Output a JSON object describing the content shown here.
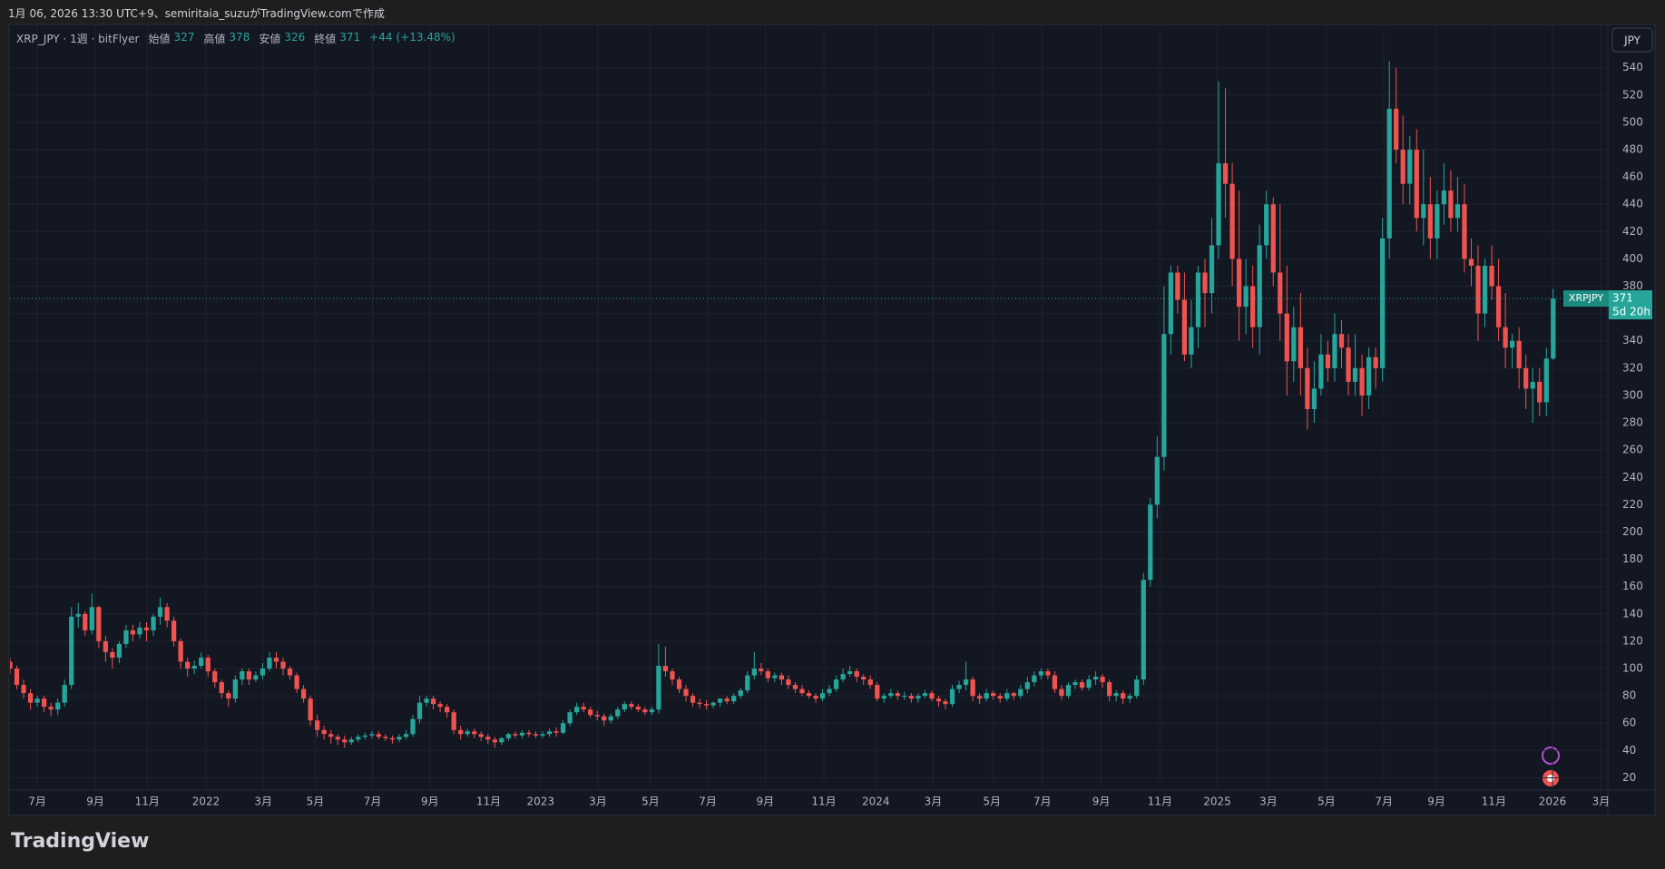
{
  "header": {
    "attribution": "1月 06, 2026 13:30 UTC+9、semiritaia_suzuがTradingView.comで作成",
    "currency": "JPY",
    "logo": "TradingView"
  },
  "chart_data": {
    "type": "candlestick",
    "legend": {
      "symbol": "XRP_JPY · 1週 · bitFlyer",
      "labels": [
        "始値",
        "高値",
        "安値",
        "終値"
      ],
      "values": [
        327,
        378,
        326,
        371
      ],
      "change": {
        "value": 44,
        "label": "+44"
      },
      "change_pct": {
        "value": 13.48,
        "label": "(+13.48%)"
      }
    },
    "last_price_label": {
      "symbol": "XRPJPY",
      "price": 371,
      "countdown": "5d 20h"
    },
    "up_color": "#26a69a",
    "down_color": "#ef5350",
    "grid": true,
    "xlim": [
      0,
      234
    ],
    "ylim": [
      11,
      571
    ],
    "yticks": [
      20,
      40,
      60,
      80,
      100,
      120,
      140,
      160,
      180,
      200,
      220,
      240,
      260,
      280,
      300,
      320,
      340,
      360,
      380,
      400,
      420,
      440,
      460,
      480,
      500,
      520,
      540
    ],
    "xticks": [
      {
        "value": 4,
        "label": "7月"
      },
      {
        "value": 12.5,
        "label": "9月"
      },
      {
        "value": 20.1,
        "label": "11月"
      },
      {
        "value": 28.7,
        "label": "2022"
      },
      {
        "value": 37.1,
        "label": "3月"
      },
      {
        "value": 44.7,
        "label": "5月"
      },
      {
        "value": 53.1,
        "label": "7月"
      },
      {
        "value": 61.5,
        "label": "9月"
      },
      {
        "value": 70.1,
        "label": "11月"
      },
      {
        "value": 77.7,
        "label": "2023"
      },
      {
        "value": 86.1,
        "label": "3月"
      },
      {
        "value": 93.8,
        "label": "5月"
      },
      {
        "value": 102.2,
        "label": "7月"
      },
      {
        "value": 110.6,
        "label": "9月"
      },
      {
        "value": 119.2,
        "label": "11月"
      },
      {
        "value": 126.8,
        "label": "2024"
      },
      {
        "value": 135.2,
        "label": "3月"
      },
      {
        "value": 143.8,
        "label": "5月"
      },
      {
        "value": 151.2,
        "label": "7月"
      },
      {
        "value": 159.8,
        "label": "9月"
      },
      {
        "value": 168.4,
        "label": "11月"
      },
      {
        "value": 176.8,
        "label": "2025"
      },
      {
        "value": 184.3,
        "label": "3月"
      },
      {
        "value": 192.8,
        "label": "5月"
      },
      {
        "value": 201.2,
        "label": "7月"
      },
      {
        "value": 208.9,
        "label": "9月"
      },
      {
        "value": 217.3,
        "label": "11月"
      },
      {
        "value": 225.9,
        "label": "2026"
      },
      {
        "value": 233,
        "label": "3月"
      }
    ],
    "open": [
      105,
      100,
      88,
      82,
      75,
      78,
      72,
      70,
      75,
      88,
      138,
      140,
      128,
      145,
      120,
      112,
      108,
      118,
      128,
      125,
      130,
      128,
      138,
      145,
      135,
      120,
      105,
      100,
      102,
      108,
      98,
      90,
      82,
      78,
      92,
      98,
      92,
      95,
      100,
      108,
      105,
      100,
      95,
      85,
      78,
      62,
      55,
      52,
      50,
      48,
      46,
      48,
      50,
      51,
      52,
      50,
      49,
      48,
      50,
      52,
      63,
      75,
      78,
      74,
      72,
      68,
      55,
      52,
      54,
      52,
      50,
      48,
      46,
      49,
      52,
      51,
      53,
      52,
      51,
      52,
      54,
      53,
      60,
      68,
      72,
      70,
      66,
      65,
      62,
      65,
      70,
      74,
      72,
      70,
      68,
      70,
      102,
      98,
      92,
      85,
      80,
      75,
      74,
      73,
      75,
      78,
      76,
      80,
      84,
      95,
      100,
      98,
      93,
      95,
      92,
      88,
      85,
      82,
      80,
      78,
      82,
      85,
      92,
      96,
      98,
      94,
      92,
      88,
      78,
      80,
      82,
      80,
      80,
      78,
      80,
      82,
      78,
      76,
      74,
      85,
      88,
      92,
      80,
      78,
      82,
      80,
      78,
      82,
      80,
      85,
      90,
      95,
      98,
      95,
      85,
      80,
      88,
      90,
      86,
      92,
      94,
      90,
      80,
      82,
      78,
      80,
      92,
      165,
      220,
      255,
      345,
      390,
      370,
      330,
      350,
      390,
      375,
      410,
      470,
      455,
      400,
      365,
      380,
      350,
      410,
      440,
      390,
      360,
      325,
      350,
      320,
      290,
      305,
      330,
      320,
      345,
      335,
      310,
      320,
      300,
      328,
      320,
      415,
      510,
      480,
      455,
      480,
      430,
      440,
      415,
      440,
      450,
      430,
      440,
      400,
      395,
      360,
      395,
      380,
      350,
      335,
      340,
      320,
      305,
      310,
      295,
      327
    ],
    "high": [
      108,
      102,
      92,
      85,
      80,
      80,
      75,
      78,
      92,
      145,
      148,
      142,
      155,
      146,
      124,
      115,
      120,
      132,
      132,
      134,
      134,
      140,
      152,
      148,
      138,
      122,
      108,
      106,
      112,
      110,
      100,
      92,
      84,
      95,
      100,
      100,
      98,
      104,
      112,
      112,
      108,
      102,
      97,
      88,
      80,
      66,
      58,
      55,
      52,
      51,
      50,
      52,
      53,
      54,
      54,
      52,
      51,
      52,
      55,
      66,
      80,
      80,
      80,
      76,
      74,
      70,
      58,
      56,
      56,
      54,
      52,
      50,
      50,
      53,
      54,
      55,
      55,
      54,
      54,
      56,
      57,
      62,
      70,
      75,
      75,
      72,
      69,
      67,
      67,
      72,
      76,
      76,
      74,
      72,
      72,
      118,
      116,
      100,
      94,
      88,
      82,
      78,
      77,
      76,
      78,
      80,
      82,
      86,
      98,
      112,
      104,
      100,
      97,
      97,
      95,
      90,
      88,
      84,
      82,
      85,
      88,
      95,
      100,
      102,
      100,
      96,
      95,
      90,
      82,
      85,
      84,
      83,
      82,
      82,
      84,
      84,
      80,
      78,
      88,
      91,
      105,
      94,
      82,
      85,
      84,
      82,
      85,
      83,
      88,
      94,
      98,
      100,
      100,
      98,
      88,
      90,
      92,
      92,
      95,
      98,
      96,
      92,
      84,
      84,
      82,
      95,
      170,
      225,
      270,
      380,
      395,
      395,
      390,
      370,
      395,
      400,
      430,
      530,
      525,
      470,
      450,
      400,
      395,
      425,
      450,
      445,
      440,
      395,
      365,
      375,
      335,
      325,
      345,
      340,
      360,
      355,
      345,
      345,
      330,
      335,
      335,
      430,
      545,
      540,
      505,
      490,
      495,
      480,
      460,
      450,
      470,
      465,
      460,
      455,
      415,
      410,
      400,
      410,
      400,
      375,
      345,
      350,
      330,
      320,
      320,
      335,
      378
    ],
    "low": [
      96,
      85,
      78,
      70,
      72,
      68,
      65,
      66,
      72,
      85,
      130,
      124,
      125,
      115,
      105,
      100,
      104,
      115,
      120,
      122,
      120,
      124,
      132,
      130,
      116,
      100,
      94,
      96,
      100,
      94,
      86,
      78,
      72,
      75,
      88,
      88,
      90,
      92,
      98,
      100,
      95,
      92,
      82,
      75,
      58,
      50,
      48,
      45,
      44,
      42,
      44,
      46,
      48,
      49,
      48,
      47,
      45,
      46,
      48,
      50,
      60,
      72,
      70,
      68,
      64,
      52,
      48,
      50,
      49,
      47,
      45,
      42,
      44,
      47,
      49,
      49,
      50,
      49,
      49,
      50,
      50,
      52,
      58,
      66,
      68,
      64,
      62,
      58,
      60,
      63,
      68,
      70,
      68,
      66,
      66,
      67,
      94,
      88,
      82,
      76,
      72,
      71,
      70,
      71,
      72,
      74,
      74,
      78,
      82,
      92,
      95,
      90,
      90,
      88,
      85,
      82,
      80,
      78,
      75,
      76,
      80,
      83,
      90,
      94,
      90,
      88,
      85,
      76,
      75,
      78,
      77,
      77,
      75,
      75,
      78,
      76,
      72,
      70,
      72,
      82,
      84,
      76,
      74,
      76,
      77,
      75,
      76,
      77,
      78,
      82,
      87,
      92,
      92,
      82,
      77,
      78,
      85,
      84,
      84,
      88,
      86,
      76,
      76,
      74,
      75,
      78,
      88,
      160,
      210,
      245,
      330,
      360,
      325,
      320,
      335,
      350,
      360,
      400,
      430,
      380,
      340,
      345,
      335,
      330,
      400,
      380,
      340,
      300,
      310,
      300,
      275,
      280,
      300,
      310,
      310,
      320,
      300,
      300,
      285,
      290,
      305,
      310,
      400,
      470,
      440,
      440,
      420,
      410,
      400,
      400,
      425,
      420,
      420,
      390,
      380,
      340,
      350,
      370,
      340,
      320,
      320,
      305,
      290,
      280,
      285,
      285,
      326
    ],
    "close": [
      100,
      88,
      82,
      75,
      78,
      72,
      70,
      75,
      88,
      138,
      140,
      128,
      145,
      120,
      112,
      108,
      118,
      128,
      125,
      130,
      128,
      138,
      145,
      135,
      120,
      105,
      100,
      102,
      108,
      98,
      90,
      82,
      78,
      92,
      98,
      92,
      95,
      100,
      108,
      105,
      100,
      95,
      85,
      78,
      62,
      55,
      52,
      50,
      48,
      46,
      48,
      50,
      51,
      52,
      50,
      49,
      48,
      50,
      52,
      63,
      75,
      78,
      74,
      72,
      68,
      55,
      52,
      54,
      52,
      50,
      48,
      46,
      49,
      52,
      51,
      53,
      52,
      51,
      52,
      54,
      53,
      60,
      68,
      72,
      70,
      66,
      65,
      62,
      65,
      70,
      74,
      72,
      70,
      68,
      70,
      102,
      98,
      92,
      85,
      80,
      75,
      74,
      73,
      75,
      78,
      76,
      80,
      84,
      95,
      100,
      98,
      93,
      95,
      92,
      88,
      85,
      82,
      80,
      78,
      82,
      85,
      92,
      96,
      98,
      94,
      92,
      88,
      78,
      80,
      82,
      80,
      80,
      78,
      80,
      82,
      78,
      76,
      74,
      85,
      88,
      92,
      80,
      78,
      82,
      80,
      78,
      82,
      80,
      85,
      90,
      95,
      98,
      95,
      85,
      80,
      88,
      90,
      86,
      92,
      94,
      90,
      80,
      82,
      78,
      80,
      92,
      165,
      220,
      255,
      345,
      390,
      370,
      330,
      350,
      390,
      375,
      410,
      470,
      455,
      400,
      365,
      380,
      350,
      410,
      440,
      390,
      360,
      325,
      350,
      320,
      290,
      305,
      330,
      320,
      345,
      335,
      310,
      320,
      300,
      328,
      320,
      415,
      510,
      480,
      455,
      480,
      430,
      440,
      415,
      440,
      450,
      430,
      440,
      400,
      395,
      360,
      395,
      380,
      350,
      335,
      340,
      320,
      305,
      310,
      295,
      327,
      371
    ]
  }
}
